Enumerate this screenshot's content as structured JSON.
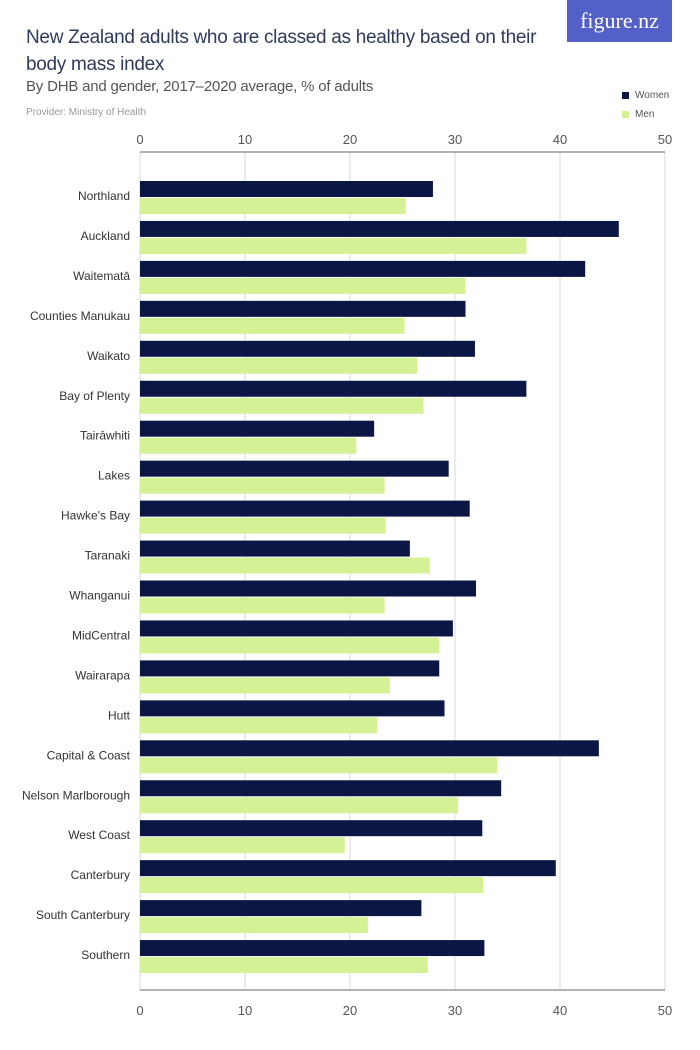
{
  "header": {
    "title": "New Zealand adults who are classed as healthy based on their body mass index",
    "subtitle": "By DHB and gender, 2017–2020 average, % of adults",
    "provider": "Provider: Ministry of Health",
    "logo": "figure.nz"
  },
  "colors": {
    "women": "#0b1645",
    "men": "#d4f196",
    "grid": "#d9d9d9",
    "axis": "#555555"
  },
  "chart_data": {
    "type": "bar",
    "orientation": "horizontal",
    "xlim": [
      0,
      50
    ],
    "grid": true,
    "legend_position": "top-right",
    "ticks": [
      "0",
      "10",
      "20",
      "30",
      "40",
      "50"
    ],
    "categories": [
      "Northland",
      "Auckland",
      "Waitematā",
      "Counties Manukau",
      "Waikato",
      "Bay of Plenty",
      "Tairāwhiti",
      "Lakes",
      "Hawke's Bay",
      "Taranaki",
      "Whanganui",
      "MidCentral",
      "Wairarapa",
      "Hutt",
      "Capital & Coast",
      "Nelson Marlborough",
      "West Coast",
      "Canterbury",
      "South Canterbury",
      "Southern"
    ],
    "series": [
      {
        "name": "Women",
        "values": [
          27.9,
          45.6,
          42.4,
          31.0,
          31.9,
          36.8,
          22.3,
          29.4,
          31.4,
          25.7,
          32.0,
          29.8,
          28.5,
          29.0,
          43.7,
          34.4,
          32.6,
          39.6,
          26.8,
          32.8
        ]
      },
      {
        "name": "Men",
        "values": [
          25.3,
          36.8,
          31.0,
          25.2,
          26.4,
          27.0,
          20.6,
          23.3,
          23.4,
          27.6,
          23.3,
          28.5,
          23.8,
          22.6,
          34.0,
          30.3,
          19.5,
          32.7,
          21.7,
          27.4
        ]
      }
    ]
  }
}
